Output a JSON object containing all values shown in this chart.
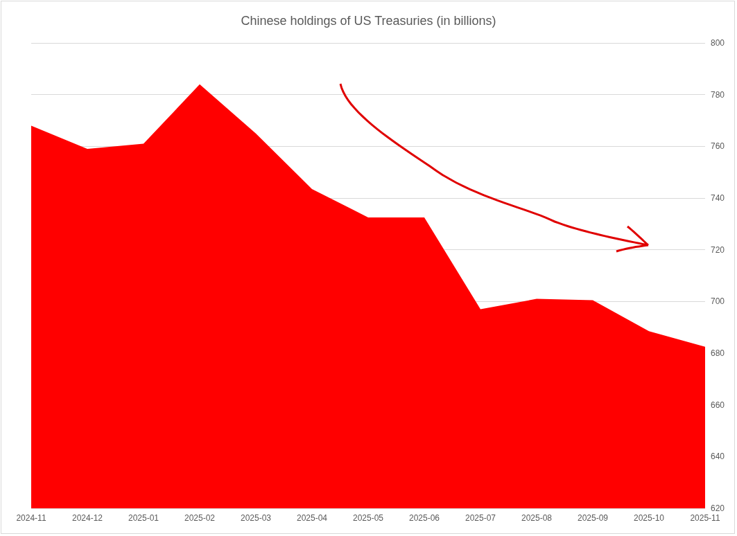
{
  "chart_data": {
    "type": "area",
    "title": "Chinese holdings of US Treasuries (in billions)",
    "categories": [
      "2024-11",
      "2024-12",
      "2025-01",
      "2025-02",
      "2025-03",
      "2025-04",
      "2025-05",
      "2025-06",
      "2025-07",
      "2025-08",
      "2025-09",
      "2025-10",
      "2025-11"
    ],
    "series": [
      {
        "color": "#ff0000",
        "values": [
          768,
          759,
          761,
          784,
          765,
          743.5,
          732.5,
          732.5,
          697,
          701,
          700.5,
          688.5,
          682.5
        ]
      }
    ],
    "ylim": [
      620,
      800
    ],
    "yticks": [
      620,
      640,
      660,
      680,
      700,
      720,
      740,
      760,
      780,
      800
    ],
    "grid": "y"
  }
}
